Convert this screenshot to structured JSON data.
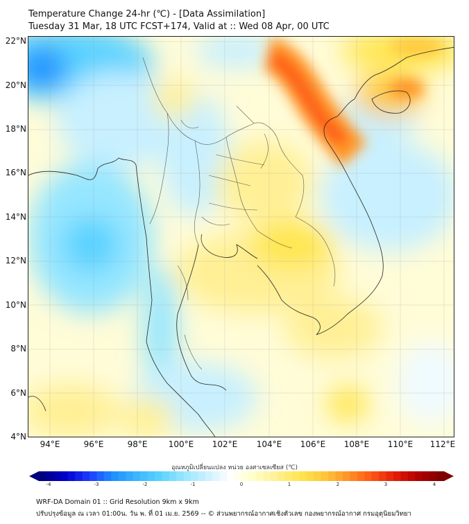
{
  "header": {
    "title_line1": "Temperature Change 24-hr (℃) - [Data Assimilation]",
    "title_line2": "Tuesday 31 Mar, 18 UTC FCST+174, Valid at :: Wed 08 Apr, 00 UTC"
  },
  "map": {
    "lon_range": [
      93,
      112.5
    ],
    "lat_range": [
      4,
      22.3
    ],
    "lat_labels": [
      "22°N",
      "20°N",
      "18°N",
      "16°N",
      "14°N",
      "12°N",
      "10°N",
      "8°N",
      "6°N",
      "4°N"
    ],
    "lon_labels": [
      "94°E",
      "96°E",
      "98°E",
      "100°E",
      "102°E",
      "104°E",
      "106°E",
      "108°E",
      "110°E",
      "112°E"
    ]
  },
  "colorbar": {
    "title": "อุณหภูมิเปลี่ยนแปลง หน่วย องศาเซลเซียส (℃)",
    "ticks": [
      "-4",
      "-3",
      "-2",
      "-1",
      "0",
      "1",
      "2",
      "3",
      "4"
    ],
    "colors": [
      "#000080",
      "#0000cd",
      "#1e3cff",
      "#1e90ff",
      "#3cb4ff",
      "#5ad2ff",
      "#96e6ff",
      "#c8f0ff",
      "#ffffff",
      "#ffffc8",
      "#fff096",
      "#ffe650",
      "#ffc83c",
      "#ff9628",
      "#ff5a14",
      "#e61e0a",
      "#b40000",
      "#800000"
    ]
  },
  "footer": {
    "line1": "WRF-DA Domain 01 :: Grid Resolution 9km x 9km",
    "line2": "ปรับปรุงข้อมูล ณ เวลา 01:00น. วัน พ. ที่ 01 เม.ย. 2569 -- © ส่วนพยากรณ์อากาศเชิงตัวเลข กองพยากรณ์อากาศ กรมอุตุนิยมวิทยา"
  }
}
